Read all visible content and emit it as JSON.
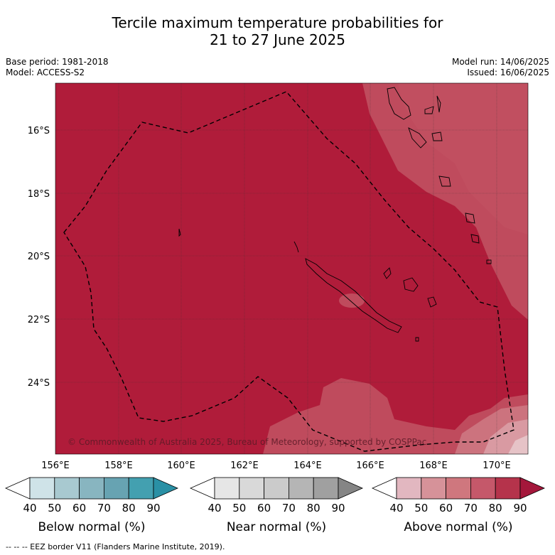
{
  "title_line1": "Tercile maximum temperature probabilities for",
  "title_line2": "21 to 27 June 2025",
  "base_period": "Base period: 1981-2018",
  "model": "Model: ACCESS-S2",
  "model_run": "Model run: 14/06/2025",
  "issued": "Issued: 16/06/2025",
  "copyright": "© Commonwealth of Australia 2025, Bureau of Meteorology, supported by COSPPac",
  "lon_labels": [
    "156°E",
    "158°E",
    "160°E",
    "162°E",
    "164°E",
    "166°E",
    "168°E",
    "170°E"
  ],
  "lat_labels": [
    "16°S",
    "18°S",
    "20°S",
    "22°S",
    "24°S"
  ],
  "colorbars": [
    {
      "title": "Below normal (%)",
      "ticks": [
        "40",
        "50",
        "60",
        "70",
        "80",
        "90"
      ],
      "colors": [
        "#ffffff",
        "#cfe3e8",
        "#a8c9d0",
        "#88b5c0",
        "#67a3b2",
        "#43a0b0",
        "#2a90a5"
      ]
    },
    {
      "title": "Near normal (%)",
      "ticks": [
        "40",
        "50",
        "60",
        "70",
        "80",
        "90"
      ],
      "colors": [
        "#ffffff",
        "#e6e6e6",
        "#d9d9d9",
        "#cbcbcb",
        "#b5b5b5",
        "#a0a0a0",
        "#858585"
      ]
    },
    {
      "title": "Above normal (%)",
      "ticks": [
        "40",
        "50",
        "60",
        "70",
        "80",
        "90"
      ],
      "colors": [
        "#ffffff",
        "#e2b7c0",
        "#d69299",
        "#cf777e",
        "#c5586a",
        "#b5334b",
        "#a4173b"
      ]
    }
  ],
  "map_colors": {
    "dominant": "#b01c3a",
    "level70": "#bf4b5d",
    "level60": "#cc737e",
    "level50": "#d99aa2",
    "level40": "#e6c3c7"
  },
  "footnote": "--  --  -- EEZ border V11 (Flanders Marine Institute, 2019)."
}
